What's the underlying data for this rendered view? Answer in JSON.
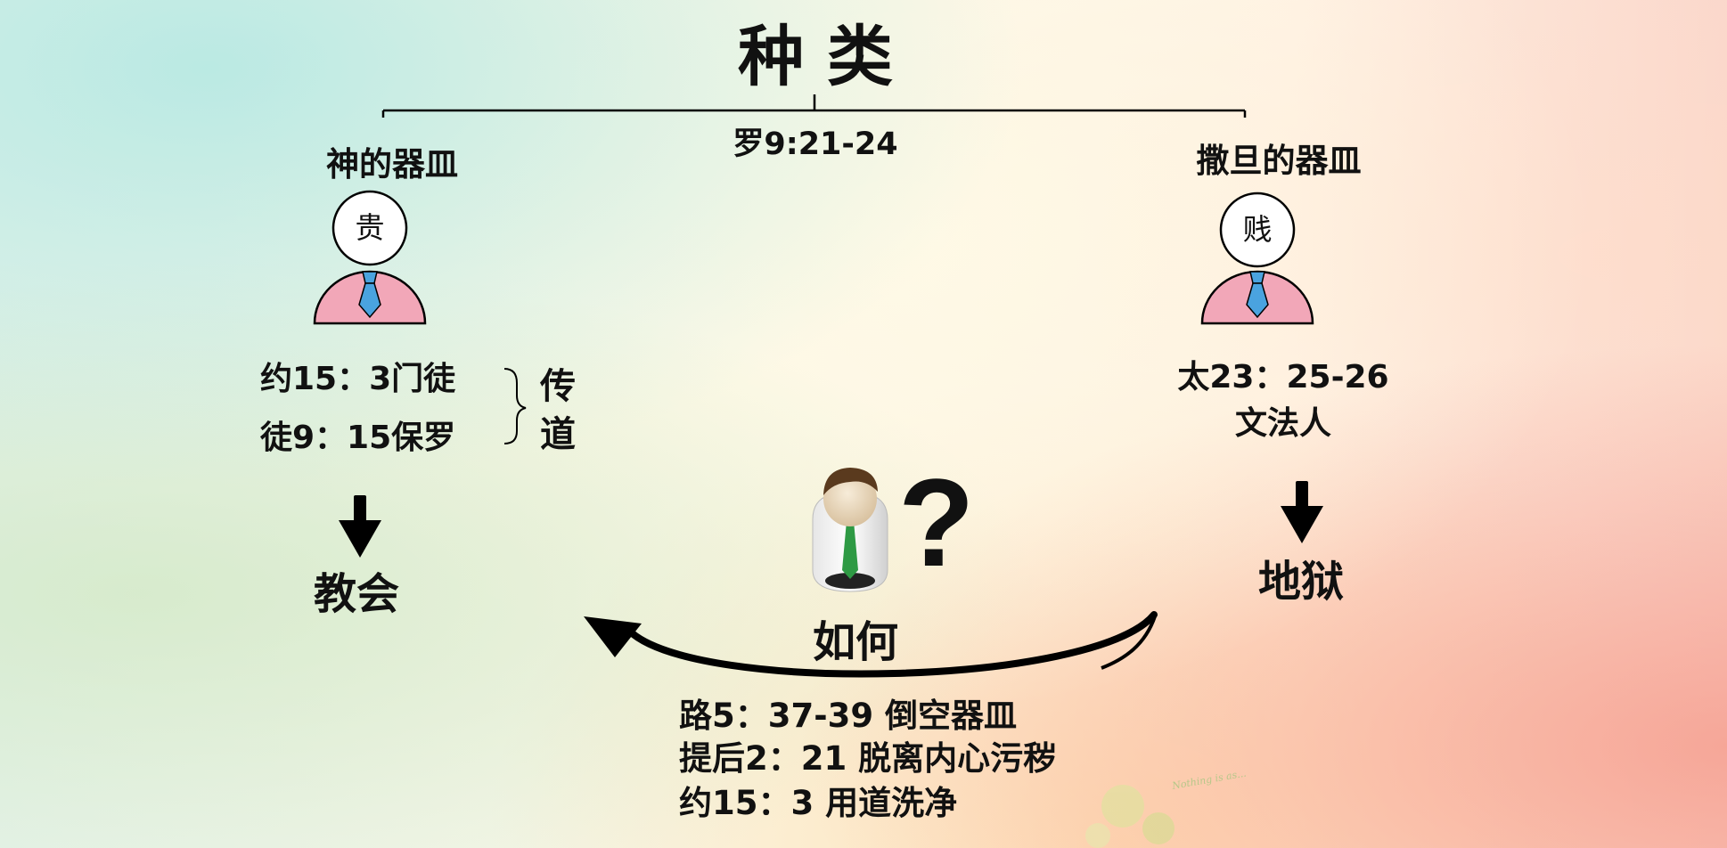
{
  "title": "种 类",
  "reference": "罗9:21-24",
  "left": {
    "heading": "神的器皿",
    "badge": "贵",
    "verse1": "约15：3门徒",
    "verse2": "徒9：15保罗",
    "brace_label_1": "传",
    "brace_label_2": "道",
    "result": "教会"
  },
  "right": {
    "heading": "撒旦的器皿",
    "badge": "贱",
    "verse1": "太23：25-26",
    "verse2": "文法人",
    "result": "地狱"
  },
  "center": {
    "question_mark": "?",
    "how_label": "如何",
    "lines": [
      "路5：37-39 倒空器皿",
      "提后2：21 脱离内心污秽",
      "约15：3 用道洗净"
    ]
  },
  "watermark_text": "Nothing is as...",
  "colors": {
    "person_body": "#f2a7b8",
    "tie": "#4aa3df",
    "line": "#000000"
  }
}
